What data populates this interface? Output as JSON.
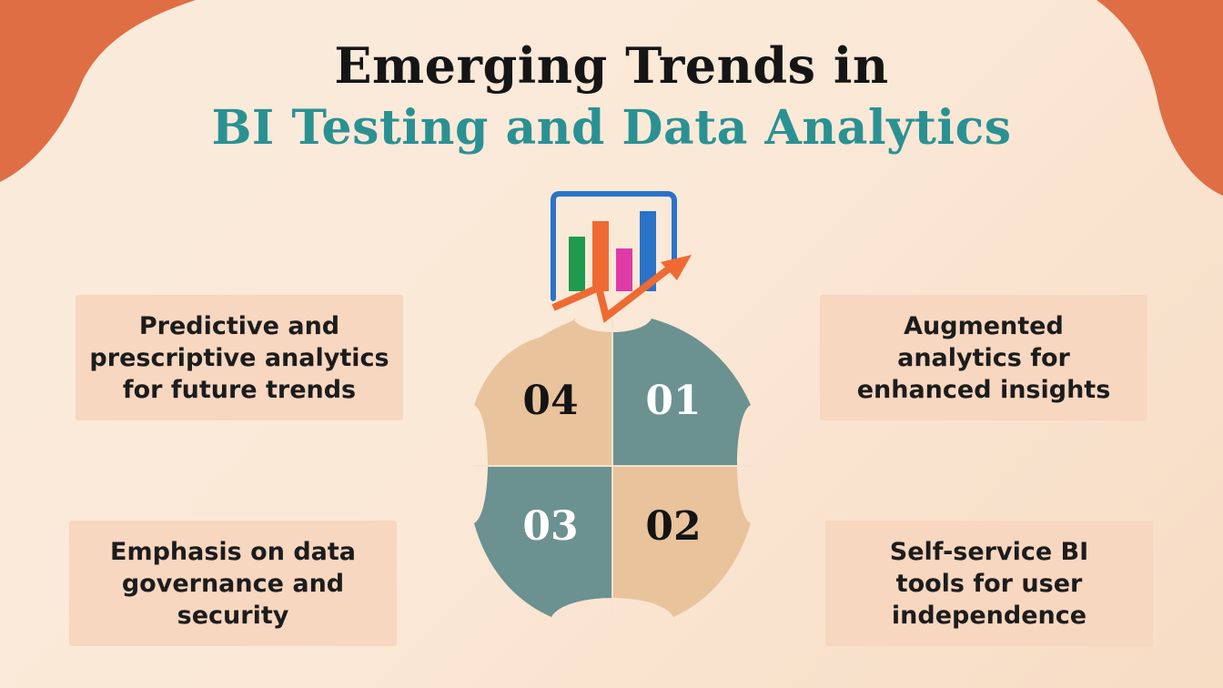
{
  "title": {
    "line1": "Emerging Trends in",
    "line2": "BI Testing and Data Analytics"
  },
  "colors": {
    "corner_orange": "#df6e45",
    "title_dark": "#151515",
    "title_teal": "#2a9193",
    "card_bg": "#f7d7c0",
    "quadrant_tan": "#e9c39b",
    "quadrant_teal": "#6b9190",
    "bar_green": "#1f9a4e",
    "bar_orange": "#ef6a32",
    "bar_pink": "#df3aa6",
    "bar_blue": "#2a73c8",
    "frame_blue": "#2a73c8",
    "arrow_orange": "#ef6a32"
  },
  "icon": {
    "name": "bar-chart-trend-up-icon"
  },
  "quadrants": [
    {
      "number": "04",
      "color": "#e9c39b",
      "text_color": "#141414"
    },
    {
      "number": "01",
      "color": "#6b9190",
      "text_color": "#ffffff"
    },
    {
      "number": "03",
      "color": "#6b9190",
      "text_color": "#ffffff"
    },
    {
      "number": "02",
      "color": "#e9c39b",
      "text_color": "#141414"
    }
  ],
  "trends": {
    "t01": "Augmented\nanalytics for\nenhanced insights",
    "t02": "Self-service BI\ntools for user\nindependence",
    "t03": "Emphasis on data\ngovernance and\nsecurity",
    "t04": "Predictive and\nprescriptive analytics\nfor future trends"
  }
}
